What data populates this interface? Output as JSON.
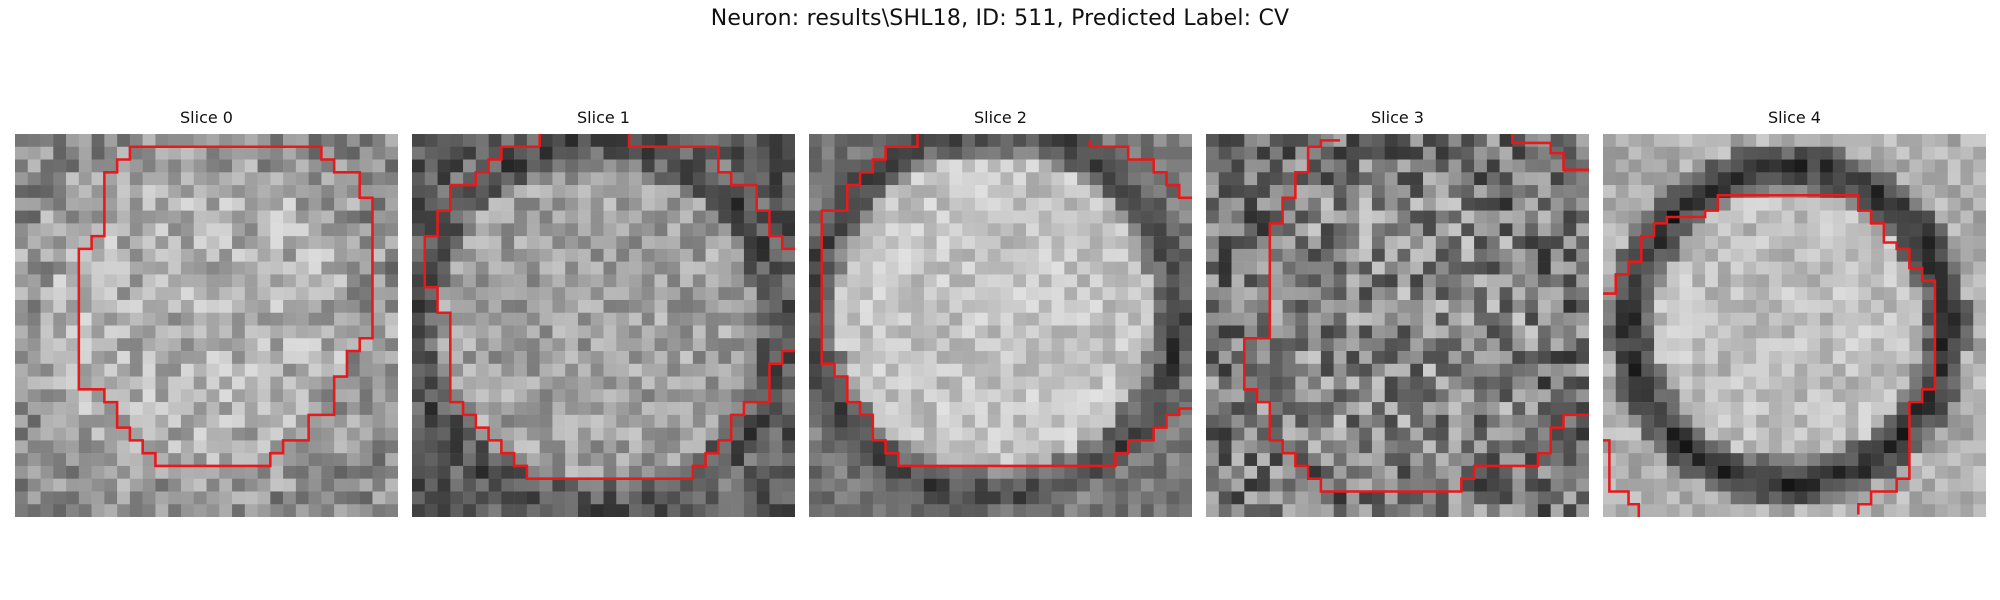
{
  "figure": {
    "title": "Neuron: results\\SHL18, ID: 511, Predicted Label: CV"
  },
  "panels": [
    {
      "label": "Slice 0"
    },
    {
      "label": "Slice 1"
    },
    {
      "label": "Slice 2"
    },
    {
      "label": "Slice 3"
    },
    {
      "label": "Slice 4"
    }
  ],
  "colors": {
    "contour": "#e8191b",
    "background": "#ffffff"
  }
}
